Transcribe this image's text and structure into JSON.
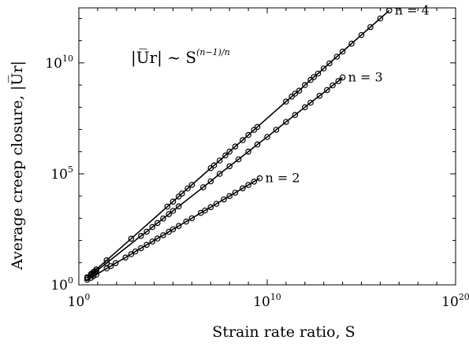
{
  "chart_data": {
    "type": "line",
    "xlabel": "Strain rate ratio, S",
    "ylabel": "Average creep closure, |U̅r|",
    "xscale": "log",
    "yscale": "log",
    "xlim": [
      1,
      1e+20
    ],
    "ylim": [
      1,
      3000000000000.0
    ],
    "xticks": [
      {
        "value": 1,
        "base": "10",
        "exp": "0"
      },
      {
        "value": 10000000000.0,
        "base": "10",
        "exp": "10"
      },
      {
        "value": 1e+20,
        "base": "10",
        "exp": "20"
      }
    ],
    "yticks": [
      {
        "value": 1,
        "base": "10",
        "exp": "0"
      },
      {
        "value": 100000.0,
        "base": "10",
        "exp": "5"
      },
      {
        "value": 10000000000.0,
        "base": "10",
        "exp": "10"
      }
    ],
    "annotation": {
      "lhs": "|U̅r| ~ S",
      "exp": "(n−1)/n"
    },
    "grid": false,
    "marker": "circle",
    "series": [
      {
        "name": "n = 2",
        "x": [
          2.8,
          4.5,
          6,
          8.5,
          30,
          50,
          90,
          300,
          600,
          1000,
          2000,
          4000,
          8000,
          15000.0,
          30000.0,
          60000.0,
          100000.0,
          200000.0,
          500000.0,
          1000000.0,
          3000000.0,
          5000000.0,
          10000000.0,
          20000000.0,
          50000000.0,
          100000000.0,
          200000000.0,
          500000000.0,
          1000000000.0,
          2000000000.0,
          4000000000.0
        ],
        "y": [
          1.7,
          2.1,
          2.5,
          2.9,
          5.5,
          7,
          9.5,
          17,
          24,
          32,
          45,
          63,
          90,
          122,
          173,
          245,
          316,
          447,
          707,
          1000,
          1730,
          2240,
          3160,
          4470,
          7070,
          10000.0,
          14100.0,
          22400.0,
          31600.0,
          44700.0,
          63000.0
        ]
      },
      {
        "name": "n = 3",
        "x": [
          2.8,
          4.5,
          6,
          8.5,
          30,
          2000,
          4000,
          8000,
          15000.0,
          30000.0,
          60000.0,
          100000.0,
          200000.0,
          4000000.0,
          10000000.0,
          30000000.0,
          100000000.0,
          300000000.0,
          1000000000.0,
          3000000000.0,
          10000000000.0,
          30000000000.0,
          100000000000.0,
          300000000000.0,
          1000000000000.0,
          2000000000000.0,
          6000000000000.0,
          15000000000000.0,
          30000000000000.0,
          60000000000000.0,
          100000000000000.0
        ],
        "y": [
          2,
          2.7,
          3.3,
          4.2,
          9.6,
          160,
          250,
          400,
          610,
          970,
          1530,
          2150,
          3420,
          25000.0,
          46000.0,
          100000.0,
          220000.0,
          450000.0,
          1000000.0,
          2100000.0,
          4600000.0,
          9700000.0,
          22000000.0,
          45000000.0,
          100000000.0,
          160000000.0,
          330000000.0,
          600000000.0,
          970000000.0,
          1500000000.0,
          2200000000.0
        ]
      },
      {
        "name": "n = 4",
        "x": [
          2.8,
          4.5,
          6,
          8.5,
          30,
          600,
          50000.0,
          100000.0,
          200000.0,
          300000.0,
          600000.0,
          1000000.0,
          10000000.0,
          15000000.0,
          30000000.0,
          60000000.0,
          100000000.0,
          200000000.0,
          500000000.0,
          1000000000.0,
          2000000000.0,
          3000000000.0,
          100000000000.0,
          200000000000.0,
          300000000000.0,
          500000000000.0,
          1000000000000.0,
          2000000000000.0,
          3000000000000.0,
          5000000000000.0,
          10000000000000.0,
          20000000000000.0,
          50000000000000.0,
          100000000000000.0,
          300000000000000.0,
          1000000000000000.0,
          3000000000000000.0,
          1e+16,
          3e+16
        ],
        "y": [
          2.2,
          3.1,
          3.8,
          5,
          12.8,
          120,
          3340,
          5620,
          9460,
          13000.0,
          22000.0,
          32000.0,
          180000.0,
          240000.0,
          400000.0,
          670000.0,
          1000000.0,
          1700000.0,
          3300000.0,
          5600000.0,
          9500000.0,
          13000000.0,
          180000000.0,
          300000000.0,
          410000000.0,
          560000000.0,
          1000000000.0,
          1700000000.0,
          2300000000.0,
          3300000000.0,
          5600000000.0,
          9500000000.0,
          19000000000.0,
          32000000000.0,
          74000000000.0,
          180000000000.0,
          410000000000.0,
          1000000000000.0,
          2300000000000.0
        ]
      }
    ]
  }
}
